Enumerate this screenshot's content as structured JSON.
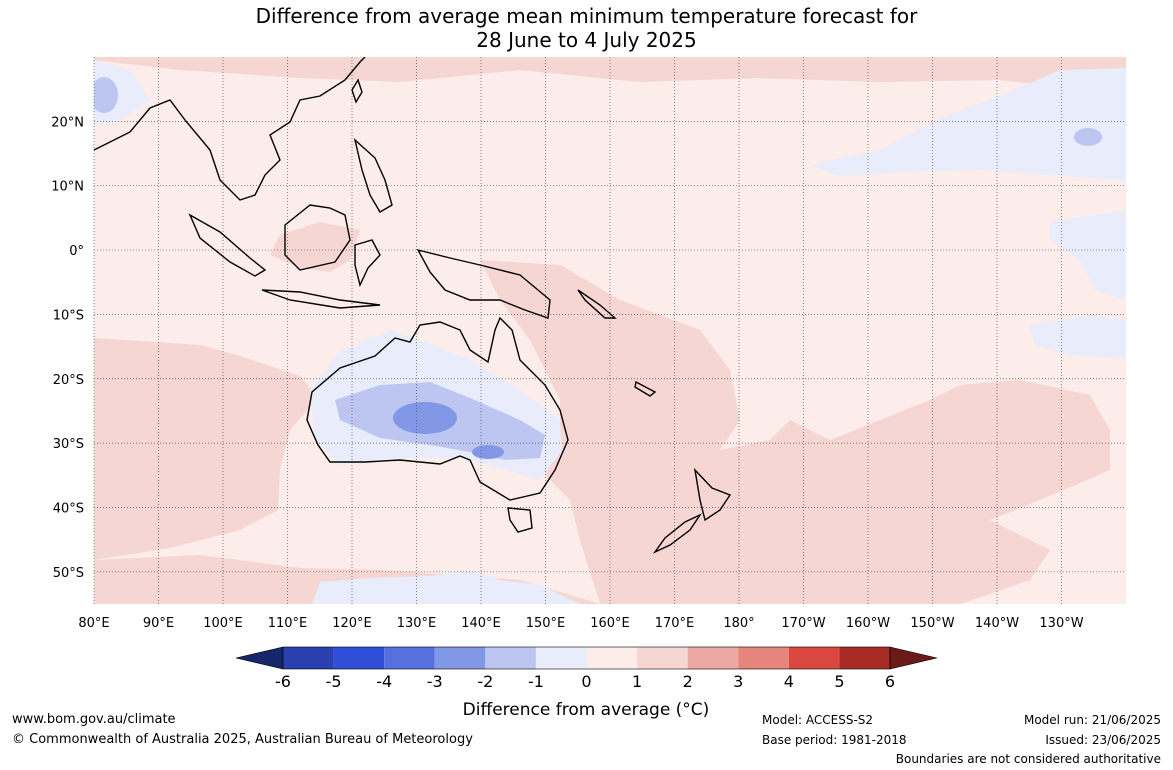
{
  "title_line1": "Difference from average mean minimum temperature forecast for",
  "title_line2": "28 June to 4 July 2025",
  "map": {
    "lon_range": [
      80,
      240
    ],
    "lat_range": [
      -55,
      30
    ],
    "lon_labels": [
      "80°E",
      "90°E",
      "100°E",
      "110°E",
      "120°E",
      "130°E",
      "140°E",
      "150°E",
      "160°E",
      "170°E",
      "180°",
      "170°W",
      "160°W",
      "150°W",
      "140°W",
      "130°W"
    ],
    "lat_labels": [
      "20°N",
      "10°N",
      "0°",
      "10°S",
      "20°S",
      "30°S",
      "40°S",
      "50°S"
    ],
    "note": "Boundaries are not considered authoritative"
  },
  "colorbar": {
    "ticks": [
      "-6",
      "-5",
      "-4",
      "-3",
      "-2",
      "-1",
      "0",
      "1",
      "2",
      "3",
      "4",
      "5",
      "6"
    ],
    "colors": [
      "#15266a",
      "#2a40ae",
      "#2f4fd9",
      "#5670df",
      "#8297e6",
      "#bcc6f1",
      "#e8ecfb",
      "#fcecea",
      "#f5d6d3",
      "#eca9a3",
      "#e5857b",
      "#d9473f",
      "#a92b25",
      "#6b1b17"
    ],
    "label": "Difference from average (°C)"
  },
  "footer": {
    "url": "www.bom.gov.au/climate",
    "copyright": "© Commonwealth of Australia 2025, Australian Bureau of Meteorology",
    "model": "Model: ACCESS-S2",
    "base_period": "Base period: 1981-2018",
    "model_run": "Model run: 21/06/2025",
    "issued": "Issued: 23/06/2025",
    "boundaries": "Boundaries are not considered authoritative"
  }
}
